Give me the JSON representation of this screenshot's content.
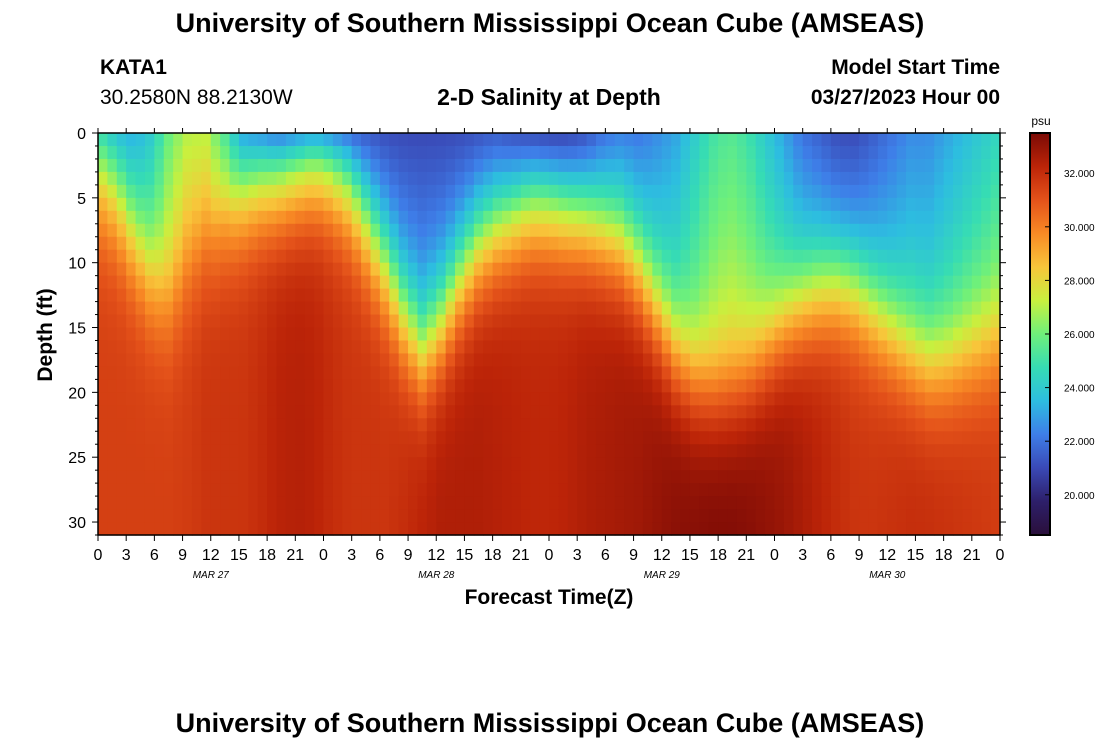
{
  "header": {
    "title": "University of Southern Mississippi Ocean Cube (AMSEAS)",
    "station": "KATA1",
    "coords": "30.2580N  88.2130W",
    "subtitle": "2-D Salinity at Depth",
    "model_start_label": "Model Start Time",
    "model_start_value": "03/27/2023 Hour 00"
  },
  "footer": {
    "title": "University of Southern Mississippi Ocean Cube (AMSEAS)"
  },
  "colors": {
    "ramp": [
      "#2a0f3a",
      "#2d1f6a",
      "#3a49b6",
      "#3e7ee8",
      "#2dbde0",
      "#36dcb4",
      "#6ff07a",
      "#c8f03e",
      "#f8c53a",
      "#f88a25",
      "#e4521a",
      "#bc2408",
      "#7a0a05"
    ]
  },
  "chart_data": {
    "type": "heatmap",
    "title": "2-D Salinity at Depth",
    "xlabel": "Forecast Time(Z)",
    "ylabel": "Depth (ft)",
    "colorbar_label": "psu",
    "x_range_hours": [
      0,
      96
    ],
    "ylim": [
      0,
      31
    ],
    "y_ticks": [
      0,
      5,
      10,
      15,
      20,
      25,
      30
    ],
    "y_tick_labels": [
      "0",
      "5",
      "10",
      "15",
      "20",
      "25",
      "30"
    ],
    "x_tick_labels": [
      "0",
      "3",
      "6",
      "9",
      "12",
      "15",
      "18",
      "21",
      "0",
      "3",
      "6",
      "9",
      "12",
      "15",
      "18",
      "21",
      "0",
      "3",
      "6",
      "9",
      "12",
      "15",
      "18",
      "21",
      "0",
      "3",
      "6",
      "9",
      "12",
      "15",
      "18",
      "21",
      "0"
    ],
    "day_labels": [
      {
        "label": "MAR 27",
        "hour": 12
      },
      {
        "label": "MAR 28",
        "hour": 36
      },
      {
        "label": "MAR 29",
        "hour": 60
      },
      {
        "label": "MAR 30",
        "hour": 84
      }
    ],
    "colorbar_range": [
      18.5,
      33.5
    ],
    "colorbar_ticks": [
      20,
      22,
      24,
      26,
      28,
      30,
      32
    ],
    "colorbar_tick_labels": [
      "20.000",
      "22.000",
      "24.000",
      "26.000",
      "28.000",
      "30.000",
      "32.000"
    ],
    "salinity_surface_psu": [
      24,
      23,
      23,
      24,
      26,
      27,
      27,
      25,
      22,
      21,
      20,
      20,
      20,
      20,
      20.5,
      21,
      21,
      21,
      21,
      21,
      21,
      21,
      21,
      20.5,
      20,
      19.8,
      20,
      20.5,
      21.5,
      22,
      22,
      22.5,
      23,
      24,
      25,
      25.5,
      25,
      24,
      23,
      22,
      21.5,
      21,
      21,
      21.5,
      22,
      22.5,
      22.5,
      23,
      23.5,
      24,
      24.5
    ],
    "halocline_depth_ft": [
      5,
      6,
      9,
      12,
      14,
      12,
      10,
      7.5,
      5.5,
      4.5,
      4,
      3.5,
      3,
      3.5,
      5,
      8,
      11,
      14.5,
      17,
      15,
      12,
      9.5,
      8,
      7,
      6,
      6,
      6.5,
      7,
      8,
      9,
      11,
      14,
      17,
      19,
      20,
      20,
      19,
      17,
      15,
      13.5,
      12.5,
      12,
      12.5,
      14,
      15.5,
      17,
      18,
      18,
      17.5,
      17,
      16.5
    ],
    "bottom_salinity_psu": [
      31.5,
      31.5,
      31.5,
      31.5,
      31.5,
      31.6,
      31.8,
      31.8,
      31.8,
      32,
      32.3,
      32.4,
      32.3,
      32,
      31.8,
      31.8,
      31.8,
      32,
      32.3,
      32.5,
      32.5,
      32.5,
      32.4,
      32.3,
      32.2,
      32.2,
      32.3,
      32.5,
      32.6,
      32.7,
      32.8,
      33,
      33.2,
      33.3,
      33.4,
      33.4,
      33.3,
      33.1,
      32.9,
      32.6,
      32.3,
      32,
      31.8,
      31.8,
      31.9,
      32,
      32,
      31.9,
      31.8,
      31.7,
      31.6
    ]
  }
}
